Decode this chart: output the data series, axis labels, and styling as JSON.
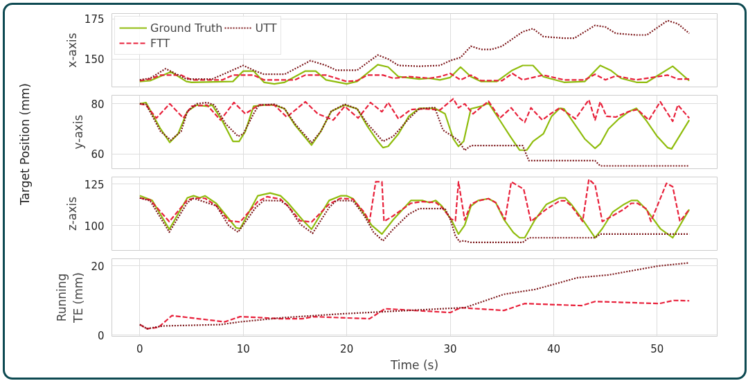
{
  "chart_data": [
    {
      "type": "line",
      "ylabel": "x-axis",
      "xlim": [
        -2.7,
        55.8
      ],
      "xticks": [
        0,
        10,
        20,
        30,
        40,
        50
      ],
      "ylim": [
        132.6,
        178.4
      ],
      "yticks": [
        150,
        175
      ],
      "grid": true,
      "tick_labels": "y",
      "legend": "top left",
      "series": [
        {
          "name": "Ground Truth",
          "color": "#8fbc0c",
          "line_style": "solid",
          "x": [
            0,
            1,
            3,
            4.5,
            5,
            9,
            10,
            11,
            12,
            13,
            14,
            16,
            17,
            18,
            20,
            21,
            23,
            24,
            25,
            27,
            28,
            29,
            30,
            31,
            32,
            33,
            34.5,
            36,
            37,
            38,
            39,
            41,
            43,
            44.5,
            45.5,
            46.5,
            48,
            49,
            51.5,
            53.1
          ],
          "values": [
            136,
            136.5,
            142,
            136,
            135.5,
            136,
            142.5,
            142.5,
            135.5,
            134.5,
            135.5,
            142.5,
            142.5,
            137,
            134.5,
            136,
            146.5,
            145,
            139,
            137.5,
            138,
            137,
            138.5,
            145,
            139,
            136,
            136,
            143,
            146,
            146,
            139,
            135.5,
            136,
            146,
            143,
            138,
            135.5,
            135.5,
            145.5,
            136.5
          ]
        },
        {
          "name": "FTT",
          "color": "#e8203a",
          "line_style": "dashed",
          "x": [
            0,
            1,
            2,
            4,
            5,
            8,
            9,
            11,
            12,
            15,
            16,
            18,
            20,
            21,
            22,
            23.5,
            24.5,
            26,
            28,
            29,
            30,
            31,
            32,
            33,
            35,
            36,
            37,
            38,
            39,
            41,
            43,
            44,
            45,
            46,
            48,
            50,
            51,
            52,
            53.1
          ],
          "values": [
            136.5,
            137.5,
            140,
            140,
            137,
            137,
            140,
            140,
            137,
            137,
            140,
            140,
            136,
            136.5,
            140,
            140,
            138,
            139,
            138,
            139,
            141,
            137,
            140,
            136.5,
            136.5,
            141,
            137,
            138.5,
            140,
            137,
            137,
            140.5,
            137,
            139.5,
            137,
            139,
            140,
            137.5,
            137.5
          ]
        },
        {
          "name": "UTT",
          "color": "#7b1518",
          "line_style": "dotted",
          "x": [
            0,
            1,
            2.5,
            4.5,
            7,
            10,
            11,
            12,
            14,
            16.5,
            18,
            19,
            21,
            23,
            24,
            25,
            27,
            29,
            30,
            31,
            32,
            33,
            34,
            35,
            37,
            38,
            39,
            41,
            42,
            44,
            45,
            46,
            48,
            49,
            51,
            52,
            53.1
          ],
          "values": [
            137,
            138,
            144,
            137.5,
            137.5,
            146,
            143,
            140.5,
            140.5,
            149,
            146,
            143,
            143,
            152.5,
            150,
            146,
            145.5,
            146,
            149,
            151,
            158,
            156,
            156,
            158,
            167,
            169,
            164,
            163,
            163,
            171,
            170,
            166,
            165,
            165,
            174,
            172,
            166
          ]
        }
      ]
    },
    {
      "type": "line",
      "ylabel": "y-axis",
      "annotations": [
        "Target Position (mm)"
      ],
      "xlim": [
        -2.7,
        55.8
      ],
      "xticks": [
        0,
        10,
        20,
        30,
        40,
        50
      ],
      "ylim": [
        54.1,
        83.4
      ],
      "yticks": [
        60,
        80
      ],
      "grid": true,
      "tick_labels": "y",
      "series": [
        {
          "color": "#8fbc0c",
          "line_style": "solid",
          "x": [
            0,
            0.6,
            2,
            2.9,
            3.7,
            4.6,
            5.5,
            6.5,
            7,
            8,
            9,
            9.6,
            10.2,
            11,
            12,
            13,
            14,
            15,
            16.6,
            17.5,
            18.5,
            19.8,
            21,
            22,
            23,
            23.5,
            24,
            25,
            26,
            27,
            28.5,
            29.5,
            30.3,
            30.8,
            31.3,
            32,
            33,
            33.7,
            34.7,
            35.8,
            36.7,
            37.4,
            38,
            39,
            39.8,
            40.6,
            41,
            42,
            43,
            44,
            44.5,
            45.3,
            46.3,
            47.3,
            48,
            49,
            50,
            51,
            51.4,
            53.1
          ],
          "values": [
            80,
            80.5,
            70,
            64.6,
            68,
            77,
            79.5,
            79,
            79.5,
            73,
            65,
            65,
            69,
            79,
            79.5,
            79.5,
            78,
            71.5,
            63.5,
            69,
            77,
            79.5,
            78,
            71,
            65,
            62.5,
            63,
            68,
            75,
            78.2,
            78.2,
            76,
            66,
            63,
            65,
            78,
            79,
            80.3,
            74,
            67,
            61.5,
            61.5,
            65,
            68,
            75,
            78.2,
            78,
            72,
            66,
            62.2,
            64,
            70,
            74,
            77,
            78.2,
            73,
            67,
            62.5,
            62,
            73.5
          ]
        },
        {
          "color": "#e8203a",
          "line_style": "dashed",
          "x": [
            0,
            0.6,
            1.6,
            2.9,
            4.2,
            5,
            6.5,
            7.8,
            9.1,
            10.2,
            11.5,
            13,
            14.2,
            16,
            17.2,
            18.7,
            19.8,
            21.1,
            22.3,
            23.4,
            24,
            25,
            26.2,
            27.5,
            29,
            30.3,
            30.8,
            31.4,
            32.2,
            33.7,
            34.8,
            35.9,
            36.7,
            37.2,
            37.8,
            38.9,
            39.7,
            40.6,
            42.1,
            43.4,
            44,
            44.5,
            45.1,
            46,
            47.2,
            48.1,
            49.2,
            50.3,
            51.5,
            52,
            53.1
          ],
          "values": [
            80,
            79.5,
            74.3,
            80,
            74.3,
            79,
            79.5,
            73.5,
            80.5,
            76,
            79.5,
            79.5,
            74.7,
            80.8,
            76,
            73.5,
            79,
            74.3,
            80.5,
            76.8,
            80.5,
            74,
            77.7,
            78,
            77.5,
            82,
            78.4,
            80,
            76,
            81,
            74.3,
            78.4,
            74.3,
            72.6,
            78.4,
            73.5,
            76,
            78.4,
            74,
            81.6,
            73.5,
            80.8,
            75,
            74.7,
            76.8,
            77.7,
            73.5,
            80.8,
            73,
            79.5,
            74.3
          ]
        },
        {
          "color": "#7b1518",
          "line_style": "dotted",
          "x": [
            0,
            0.6,
            2,
            3,
            4,
            4.6,
            5.5,
            6.5,
            7.2,
            8.3,
            9.5,
            10,
            11,
            11.5,
            13,
            14,
            15,
            16.6,
            17.5,
            18.5,
            19.8,
            21,
            22,
            23.5,
            24.5,
            26,
            27,
            28.5,
            29.3,
            30.8,
            31.4,
            32,
            37,
            37.6,
            44,
            44.5,
            53.1
          ],
          "values": [
            80,
            79.8,
            69,
            65.5,
            69,
            77,
            80,
            80.5,
            79.5,
            72,
            67,
            68,
            76,
            79.5,
            79.8,
            78,
            72,
            64.5,
            69,
            77,
            79.8,
            78,
            72,
            65,
            67,
            74,
            78,
            78.5,
            69.5,
            65.4,
            61.4,
            63.3,
            63.3,
            57.3,
            57.3,
            55.2,
            55.2
          ]
        }
      ]
    },
    {
      "type": "line",
      "ylabel": "z-axis",
      "xlim": [
        -2.7,
        55.8
      ],
      "xticks": [
        0,
        10,
        20,
        30,
        40,
        50
      ],
      "ylim": [
        85.2,
        129.3
      ],
      "yticks": [
        100,
        125
      ],
      "grid": true,
      "tick_labels": "y",
      "series": [
        {
          "color": "#8fbc0c",
          "line_style": "solid",
          "x": [
            0,
            1.2,
            2.85,
            4.6,
            5.2,
            5.8,
            6.3,
            7.4,
            9.3,
            9.7,
            11.4,
            12.6,
            13.6,
            14.3,
            15.7,
            16.6,
            18.3,
            19.4,
            20,
            20.6,
            21.7,
            22.4,
            23.4,
            24.5,
            26.2,
            27.3,
            28,
            28.6,
            29.2,
            30.1,
            30.8,
            31.4,
            32,
            32.7,
            33.7,
            34.4,
            35.2,
            36.1,
            36.7,
            37.2,
            38.2,
            39.3,
            40.6,
            41.1,
            41.7,
            42.8,
            44,
            44.7,
            45.7,
            46.8,
            47.5,
            48.1,
            49,
            50.3,
            51.5,
            53.1
          ],
          "values": [
            118.1,
            115.2,
            97.9,
            116.8,
            118,
            116.8,
            118,
            113.4,
            98.8,
            98.3,
            118,
            119.7,
            118,
            113.9,
            103.7,
            97.9,
            115.2,
            118,
            118,
            116.3,
            107,
            100.3,
            95,
            103.7,
            115.2,
            115.2,
            113.9,
            115.2,
            111.8,
            103.7,
            95,
            100.3,
            111.8,
            115.2,
            116.3,
            113.9,
            103.7,
            96,
            92.8,
            92.8,
            103.7,
            112.9,
            116.8,
            116.8,
            112.9,
            103.7,
            92.8,
            98.3,
            108.2,
            112.9,
            115.2,
            115.2,
            109.4,
            98.3,
            92.8,
            109.8
          ]
        },
        {
          "color": "#e8203a",
          "line_style": "dashed",
          "x": [
            0,
            1,
            2.85,
            4.6,
            5.2,
            6.3,
            7.4,
            8.6,
            9.7,
            11.4,
            12.3,
            13.6,
            14.3,
            15.5,
            16.6,
            18.3,
            19.4,
            20.6,
            21.7,
            22.2,
            22.8,
            23.4,
            23.6,
            24.5,
            26.2,
            27.3,
            28.6,
            29.2,
            30.1,
            30.5,
            30.8,
            31.4,
            32,
            32.7,
            33.7,
            34.4,
            35.3,
            35.9,
            37.1,
            37.8,
            39.3,
            40.6,
            41.1,
            41.7,
            42.8,
            43.4,
            44,
            44.7,
            45.7,
            46.8,
            47.5,
            48.1,
            49,
            49.4,
            50.9,
            51.5,
            52.2,
            53.1
          ],
          "values": [
            116.7,
            115.5,
            102.5,
            115.5,
            116.5,
            116.5,
            112,
            103,
            102.3,
            114.5,
            117.5,
            116,
            112,
            103,
            102.3,
            113,
            116.5,
            116,
            108,
            102.5,
            126.4,
            126.4,
            102.6,
            106,
            113.5,
            114.5,
            114,
            111,
            104,
            103,
            126.4,
            103.5,
            113,
            115,
            116.3,
            113.9,
            103.7,
            126.4,
            122,
            102.6,
            110,
            115,
            115,
            112,
            102.6,
            127.9,
            124.5,
            102.6,
            106,
            110,
            113.5,
            113.5,
            110,
            102.6,
            125.5,
            123.5,
            102.6,
            109.8
          ]
        },
        {
          "color": "#7b1518",
          "line_style": "dotted",
          "x": [
            0,
            1,
            2.85,
            4.6,
            5.2,
            7.4,
            8.6,
            9.5,
            11.2,
            12,
            13.6,
            14.3,
            15.5,
            16.7,
            18.3,
            19,
            20.6,
            21.7,
            22.6,
            23.5,
            24.5,
            26,
            27,
            29.5,
            30,
            30.5,
            30.9,
            31.3,
            32,
            37,
            37.6,
            44,
            44.5,
            53.1
          ],
          "values": [
            116.7,
            115,
            96.2,
            114,
            116.5,
            112,
            100,
            96.2,
            111,
            115.2,
            115,
            112,
            101,
            95.5,
            111,
            115.2,
            115,
            106,
            96,
            91,
            98,
            107,
            110.3,
            110.3,
            104,
            94,
            90.5,
            91,
            90,
            90,
            92.8,
            92.8,
            95,
            95
          ]
        }
      ]
    },
    {
      "type": "line",
      "ylabel": "Running\nTE (mm)",
      "xlabel": "Time (s)",
      "xlim": [
        -2.7,
        55.8
      ],
      "xticks": [
        0,
        10,
        20,
        30,
        40,
        50
      ],
      "ylim": [
        -0.4,
        22.1
      ],
      "yticks": [
        0,
        20
      ],
      "grid": true,
      "series": [
        {
          "color": "#e8203a",
          "line_style": "dashed",
          "x": [
            0,
            0.7,
            1.8,
            3.1,
            4.8,
            8.2,
            9.7,
            11.9,
            13.4,
            15.7,
            16.8,
            19.4,
            22.2,
            23.7,
            30,
            31,
            35.2,
            37.2,
            42.7,
            44,
            50.2,
            51.6,
            53.1
          ],
          "values": [
            3,
            1.8,
            2.2,
            5.6,
            5,
            3.8,
            5.3,
            5,
            4.7,
            4.7,
            5.3,
            5,
            4.7,
            7.6,
            6.5,
            7.9,
            7.1,
            9.1,
            8.5,
            9.7,
            9.1,
            10,
            9.9
          ]
        },
        {
          "color": "#7b1518",
          "line_style": "dotted",
          "x": [
            0,
            0.7,
            2.2,
            7.8,
            9.7,
            13.8,
            19.4,
            29.9,
            31.4,
            35.2,
            38.2,
            40.4,
            42.3,
            45.3,
            50.1,
            53.1
          ],
          "values": [
            3,
            1.8,
            2.6,
            3,
            3.8,
            5,
            6.1,
            7.7,
            7.9,
            11.8,
            13.2,
            15,
            16.6,
            17.4,
            20,
            20.9
          ]
        }
      ]
    }
  ]
}
